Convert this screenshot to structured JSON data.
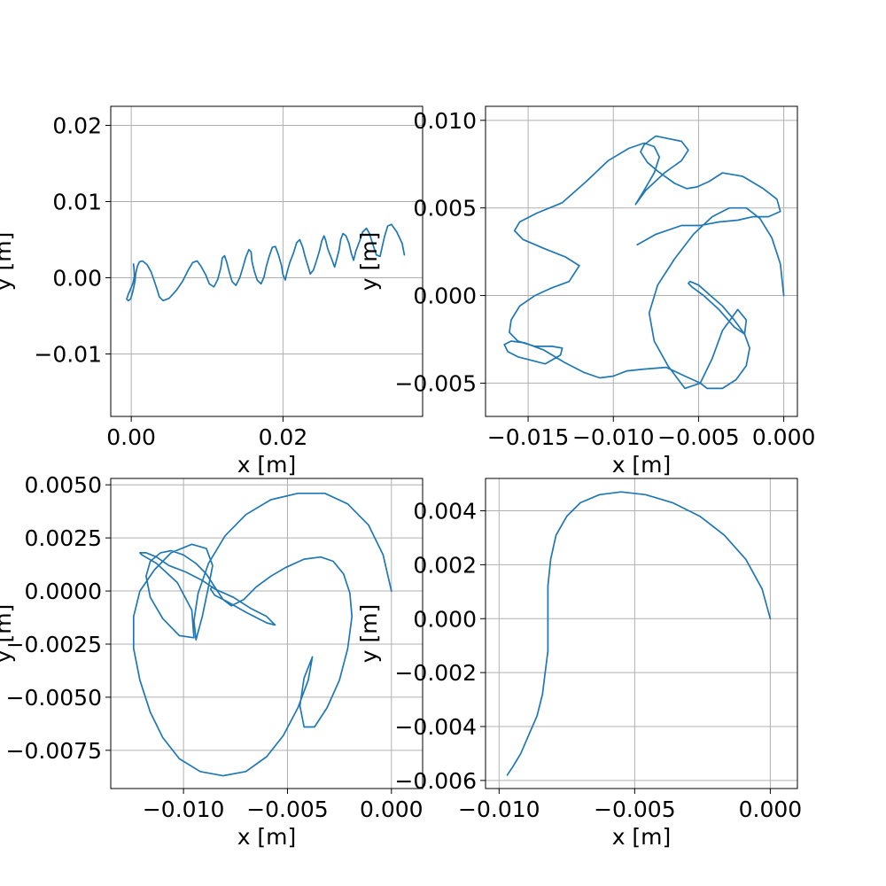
{
  "figure": {
    "line_color": "#1f77b4",
    "grid": true
  },
  "chart_data": [
    {
      "type": "line",
      "title": "",
      "xlabel": "x [m]",
      "ylabel": "y [m]",
      "xlim": [
        -0.0027,
        0.0384
      ],
      "ylim": [
        -0.0182,
        0.0225
      ],
      "xticks": [
        0.0,
        0.02
      ],
      "xtick_labels": [
        "0.00",
        "0.02"
      ],
      "yticks": [
        -0.01,
        0.0,
        0.01,
        0.02
      ],
      "ytick_labels": [
        "−0.01",
        "0.00",
        "0.01",
        "0.02"
      ],
      "grid": true,
      "series": [
        {
          "x": [
            0.036,
            0.0357,
            0.035,
            0.0343,
            0.0338,
            0.0334,
            0.0331,
            0.0328,
            0.0323,
            0.0318,
            0.0314,
            0.031,
            0.0305,
            0.0301,
            0.0296,
            0.0293,
            0.029,
            0.0287,
            0.0283,
            0.0279,
            0.0276,
            0.0274,
            0.0271,
            0.0268,
            0.0264,
            0.0259,
            0.0256,
            0.0254,
            0.0251,
            0.0248,
            0.0244,
            0.024,
            0.0236,
            0.0233,
            0.0229,
            0.0226,
            0.0222,
            0.0218,
            0.0214,
            0.0209,
            0.0205,
            0.0203,
            0.02,
            0.0198,
            0.0194,
            0.019,
            0.0186,
            0.0182,
            0.0178,
            0.0175,
            0.0171,
            0.0166,
            0.0162,
            0.0159,
            0.0158,
            0.0155,
            0.0151,
            0.0147,
            0.0143,
            0.0138,
            0.0133,
            0.0129,
            0.0126,
            0.0123,
            0.012,
            0.0118,
            0.0114,
            0.0109,
            0.0103,
            0.0098,
            0.0092,
            0.0087,
            0.0081,
            0.0075,
            0.0068,
            0.006,
            0.005,
            0.0042,
            0.0037,
            0.0034,
            0.003,
            0.0026,
            0.0021,
            0.0015,
            0.0011,
            0.0008,
            0.0006,
            0.0005,
            0.0003,
            0.0001,
            -0.0001,
            -0.0004,
            -0.0006,
            -0.0004,
            -0.0001,
            0.0002,
            0.0004,
            0.0004,
            0.0003
          ],
          "y": [
            0.003,
            0.0045,
            0.006,
            0.007,
            0.0068,
            0.0055,
            0.0042,
            0.0028,
            0.003,
            0.0045,
            0.0058,
            0.0065,
            0.006,
            0.0048,
            0.0035,
            0.0023,
            0.0032,
            0.0045,
            0.0055,
            0.0058,
            0.005,
            0.0037,
            0.0025,
            0.0014,
            0.0025,
            0.0038,
            0.005,
            0.0055,
            0.0048,
            0.0035,
            0.0022,
            0.001,
            0.0005,
            0.0015,
            0.0028,
            0.004,
            0.005,
            0.0046,
            0.0033,
            0.002,
            0.0006,
            -0.0003,
            0.0004,
            0.0016,
            0.003,
            0.0041,
            0.004,
            0.0029,
            0.0015,
            0.0001,
            -0.0008,
            -0.0003,
            0.0009,
            0.0022,
            0.0034,
            0.0037,
            0.0027,
            0.0013,
            0.0,
            -0.001,
            -0.0005,
            0.0008,
            0.002,
            0.0029,
            0.0026,
            0.0013,
            -0.0002,
            -0.0012,
            -0.0008,
            0.0004,
            0.0015,
            0.0022,
            0.002,
            0.001,
            -0.0004,
            -0.0016,
            -0.0027,
            -0.003,
            -0.0025,
            -0.0015,
            -0.0003,
            0.0008,
            0.0017,
            0.0022,
            0.0021,
            0.0015,
            0.0006,
            -0.0004,
            -0.0014,
            -0.0022,
            -0.0028,
            -0.003,
            -0.0028,
            -0.0022,
            -0.0015,
            -0.0008,
            0.0,
            0.0008,
            0.0018
          ]
        }
      ]
    },
    {
      "type": "line",
      "title": "",
      "xlabel": "x [m]",
      "ylabel": "y [m]",
      "xlim": [
        -0.0175,
        0.0008
      ],
      "ylim": [
        -0.0069,
        0.0108
      ],
      "xticks": [
        -0.015,
        -0.01,
        -0.005,
        0.0
      ],
      "xtick_labels": [
        "−0.015",
        "−0.010",
        "−0.005",
        "0.000"
      ],
      "yticks": [
        -0.005,
        0.0,
        0.005,
        0.01
      ],
      "ytick_labels": [
        "−0.005",
        "0.000",
        "0.005",
        "0.010"
      ],
      "grid": true,
      "series": [
        {
          "x": [
            0.0,
            -0.0002,
            -0.0007,
            -0.0014,
            -0.0022,
            -0.0032,
            -0.0042,
            -0.0053,
            -0.0064,
            -0.0074,
            -0.0079,
            -0.0076,
            -0.0068,
            -0.0058,
            -0.0049,
            -0.0042,
            -0.0036,
            -0.0027,
            -0.0022,
            -0.0023,
            -0.0029,
            -0.0038,
            -0.0047,
            -0.0054,
            -0.0056,
            -0.0055,
            -0.005,
            -0.0043,
            -0.0036,
            -0.0029,
            -0.0023,
            -0.002,
            -0.0022,
            -0.0028,
            -0.0036,
            -0.0045,
            -0.0049,
            -0.0058,
            -0.0069,
            -0.0082,
            -0.0092,
            -0.01,
            -0.0108,
            -0.0117,
            -0.0129,
            -0.0141,
            -0.0152,
            -0.016,
            -0.0164,
            -0.0162,
            -0.0156,
            -0.0148,
            -0.014,
            -0.0131,
            -0.013,
            -0.0136,
            -0.0146,
            -0.0156,
            -0.0161,
            -0.016,
            -0.0155,
            -0.0146,
            -0.0137,
            -0.0126,
            -0.012,
            -0.0128,
            -0.0141,
            -0.0153,
            -0.0158,
            -0.0155,
            -0.0145,
            -0.013,
            -0.0116,
            -0.0103,
            -0.0091,
            -0.0082,
            -0.0076,
            -0.0073,
            -0.0076,
            -0.0082,
            -0.0087,
            -0.0081,
            -0.007,
            -0.006,
            -0.0056,
            -0.006,
            -0.007,
            -0.0075,
            -0.0078,
            -0.0082,
            -0.0084,
            -0.008,
            -0.0074,
            -0.0064,
            -0.0057,
            -0.0051,
            -0.0044,
            -0.0036,
            -0.0024,
            -0.0012,
            -0.0004,
            -0.0002,
            -0.0009,
            -0.0018,
            -0.0027,
            -0.0038,
            -0.0049,
            -0.006,
            -0.0075,
            -0.0086
          ],
          "y": [
            0.0,
            0.0018,
            0.0033,
            0.0044,
            0.005,
            0.005,
            0.0045,
            0.0035,
            0.0021,
            0.0006,
            -0.001,
            -0.0026,
            -0.004,
            -0.0053,
            -0.005,
            -0.0036,
            -0.002,
            -0.0008,
            -0.0014,
            -0.0022,
            -0.0018,
            -0.0008,
            0.0,
            0.0005,
            0.0007,
            0.0008,
            0.0006,
            0.0,
            -0.0006,
            -0.0014,
            -0.0022,
            -0.003,
            -0.004,
            -0.0048,
            -0.0053,
            -0.0053,
            -0.005,
            -0.0046,
            -0.0041,
            -0.0042,
            -0.0043,
            -0.0046,
            -0.0047,
            -0.0044,
            -0.0038,
            -0.0031,
            -0.0027,
            -0.0026,
            -0.0028,
            -0.0032,
            -0.0035,
            -0.0037,
            -0.0039,
            -0.0034,
            -0.003,
            -0.0029,
            -0.0029,
            -0.0026,
            -0.0021,
            -0.0014,
            -0.0006,
            0.0,
            0.0004,
            0.0008,
            0.0017,
            0.0022,
            0.0027,
            0.0032,
            0.0037,
            0.0042,
            0.0047,
            0.0053,
            0.0065,
            0.0077,
            0.0084,
            0.0087,
            0.0085,
            0.0079,
            0.007,
            0.006,
            0.0052,
            0.006,
            0.007,
            0.0077,
            0.0083,
            0.0088,
            0.009,
            0.0091,
            0.0089,
            0.0086,
            0.0082,
            0.0076,
            0.0071,
            0.0064,
            0.0061,
            0.0062,
            0.0065,
            0.007,
            0.0068,
            0.0061,
            0.0055,
            0.0048,
            0.0045,
            0.0045,
            0.0043,
            0.0042,
            0.004,
            0.004,
            0.0035,
            0.0029
          ]
        }
      ]
    },
    {
      "type": "line",
      "title": "",
      "xlabel": "x [m]",
      "ylabel": "y [m]",
      "xlim": [
        -0.0135,
        0.0015
      ],
      "ylim": [
        -0.0093,
        0.0053
      ],
      "xticks": [
        -0.01,
        -0.005,
        0.0
      ],
      "xtick_labels": [
        "−0.010",
        "−0.005",
        "0.000"
      ],
      "yticks": [
        -0.0075,
        -0.005,
        -0.0025,
        0.0,
        0.0025,
        0.005
      ],
      "ytick_labels": [
        "−0.0075",
        "−0.0050",
        "−0.0025",
        "0.0000",
        "0.0025",
        "0.0050"
      ],
      "grid": true,
      "series": [
        {
          "x": [
            0.0,
            -0.0004,
            -0.0011,
            -0.0021,
            -0.0032,
            -0.0045,
            -0.0058,
            -0.007,
            -0.008,
            -0.0088,
            -0.0093,
            -0.0095,
            -0.0094,
            -0.0091,
            -0.0088,
            -0.0086,
            -0.0089,
            -0.0096,
            -0.0106,
            -0.0114,
            -0.0121,
            -0.0124,
            -0.0124,
            -0.0121,
            -0.0116,
            -0.011,
            -0.0102,
            -0.0092,
            -0.0081,
            -0.007,
            -0.006,
            -0.0052,
            -0.0045,
            -0.004,
            -0.0038,
            -0.0042,
            -0.0044,
            -0.0042,
            -0.0037,
            -0.0031,
            -0.0025,
            -0.0021,
            -0.0019,
            -0.002,
            -0.0023,
            -0.0028,
            -0.0034,
            -0.0042,
            -0.0051,
            -0.0058,
            -0.0065,
            -0.0071,
            -0.0077,
            -0.0081,
            -0.0085,
            -0.0089,
            -0.0094,
            -0.01,
            -0.0106,
            -0.0111,
            -0.0116,
            -0.0118,
            -0.0116,
            -0.011,
            -0.0102,
            -0.0095,
            -0.0096,
            -0.0103,
            -0.0113,
            -0.012,
            -0.0121,
            -0.0118,
            -0.0113,
            -0.0107,
            -0.0099,
            -0.0091,
            -0.0085,
            -0.0076,
            -0.0068,
            -0.006,
            -0.0056,
            -0.006,
            -0.007,
            -0.0079,
            -0.0085,
            -0.0087,
            -0.0086
          ],
          "y": [
            0.0,
            0.0017,
            0.0031,
            0.0041,
            0.0046,
            0.0046,
            0.0043,
            0.0036,
            0.0026,
            0.0013,
            -0.0001,
            -0.0014,
            -0.0023,
            -0.0012,
            0.0002,
            0.0012,
            0.002,
            0.0022,
            0.0018,
            0.001,
            0.0,
            -0.0012,
            -0.0027,
            -0.0042,
            -0.0057,
            -0.0069,
            -0.0079,
            -0.0085,
            -0.0087,
            -0.0085,
            -0.0078,
            -0.0068,
            -0.0055,
            -0.0042,
            -0.0031,
            -0.0041,
            -0.0054,
            -0.0064,
            -0.0064,
            -0.0055,
            -0.0042,
            -0.0027,
            -0.0012,
            -0.0001,
            0.0008,
            0.0014,
            0.0016,
            0.0015,
            0.0011,
            0.0007,
            0.0002,
            -0.0004,
            -0.0007,
            -0.0004,
            0.0002,
            0.0008,
            0.0013,
            0.0017,
            0.0019,
            0.0018,
            0.0014,
            0.0007,
            -0.0003,
            -0.0013,
            -0.0021,
            -0.0022,
            -0.0009,
            0.0004,
            0.0013,
            0.0017,
            0.0018,
            0.0018,
            0.0016,
            0.0012,
            0.0009,
            0.0005,
            0.0001,
            -0.0003,
            -0.0008,
            -0.0012,
            -0.0016,
            -0.0015,
            -0.001,
            -0.0005,
            -0.0002,
            0.0001,
            0.0002
          ]
        }
      ]
    },
    {
      "type": "line",
      "title": "",
      "xlabel": "x [m]",
      "ylabel": "y [m]",
      "xlim": [
        -0.0105,
        0.001
      ],
      "ylim": [
        -0.0063,
        0.0052
      ],
      "xticks": [
        -0.01,
        -0.005,
        0.0
      ],
      "xtick_labels": [
        "−0.010",
        "−0.005",
        "0.000"
      ],
      "yticks": [
        -0.006,
        -0.004,
        -0.002,
        0.0,
        0.002,
        0.004
      ],
      "ytick_labels": [
        "−0.006",
        "−0.004",
        "−0.002",
        "0.000",
        "0.002",
        "0.004"
      ],
      "grid": true,
      "series": [
        {
          "x": [
            0.0,
            -0.0003,
            -0.0009,
            -0.0017,
            -0.0026,
            -0.0036,
            -0.0046,
            -0.0055,
            -0.0063,
            -0.007,
            -0.0075,
            -0.0079,
            -0.0081,
            -0.0082,
            -0.0082,
            -0.0082,
            -0.0082,
            -0.0083,
            -0.0084,
            -0.0086,
            -0.0089,
            -0.0092,
            -0.0095,
            -0.0097
          ],
          "y": [
            0.0,
            0.0011,
            0.0022,
            0.0031,
            0.0038,
            0.0043,
            0.0046,
            0.0047,
            0.0046,
            0.0043,
            0.0038,
            0.0031,
            0.0022,
            0.0012,
            0.0004,
            -0.0004,
            -0.0012,
            -0.002,
            -0.0028,
            -0.0036,
            -0.0043,
            -0.005,
            -0.0055,
            -0.0058
          ]
        }
      ]
    }
  ]
}
